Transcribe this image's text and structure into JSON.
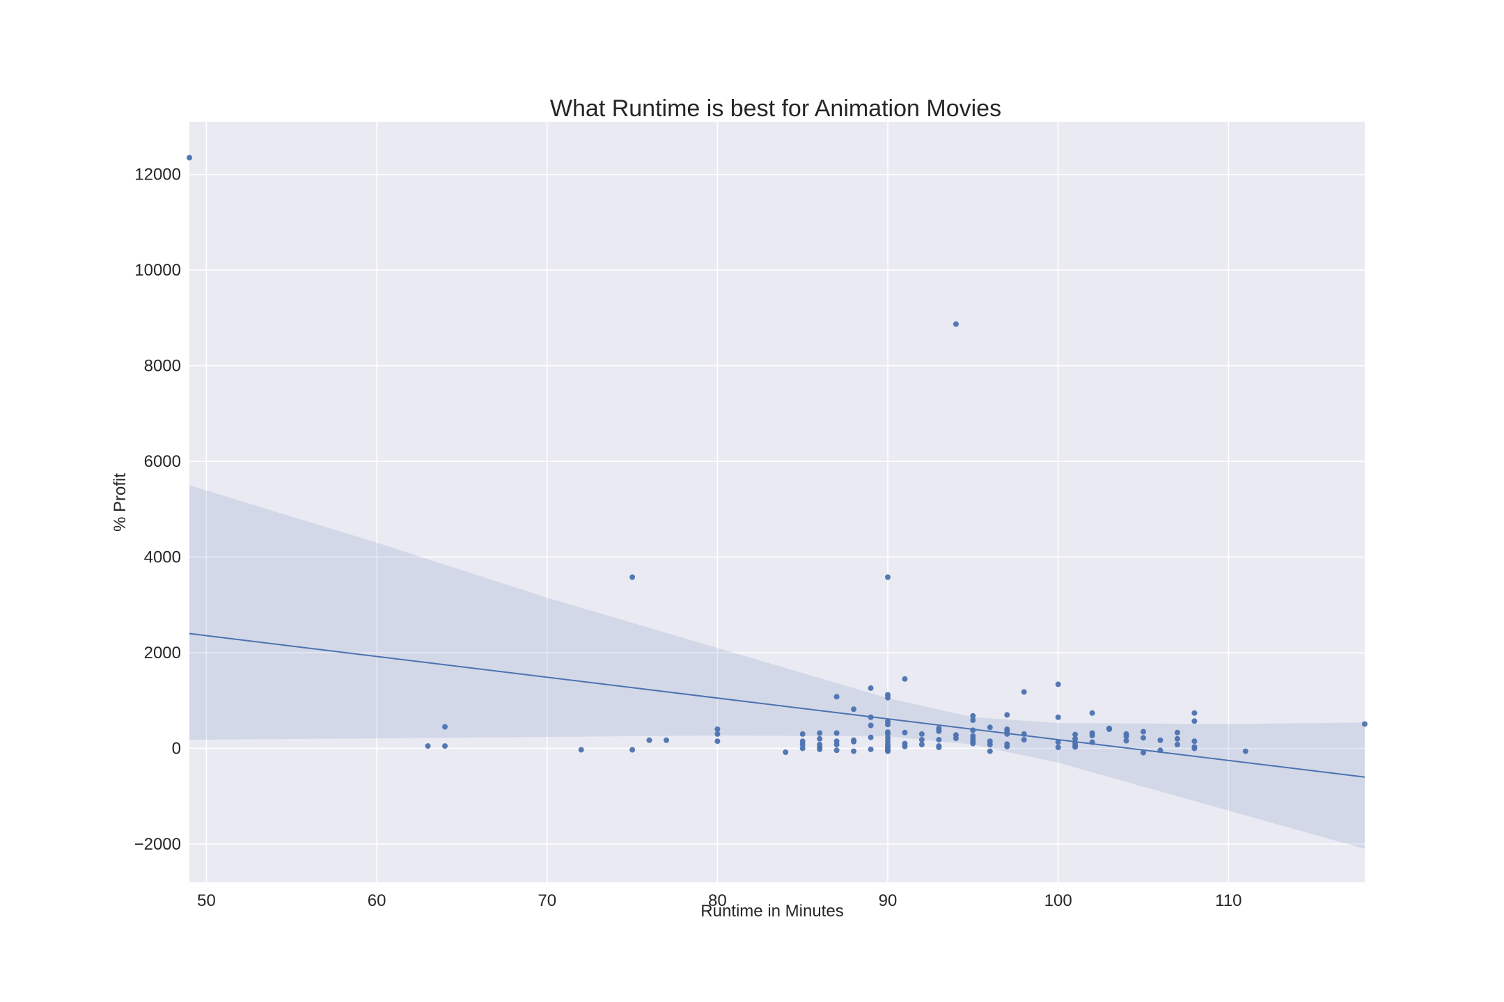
{
  "chart_data": {
    "type": "scatter",
    "title": "What Runtime is best for Animation Movies",
    "xlabel": "Runtime in Minutes",
    "ylabel": "% Profit",
    "xlim": [
      49,
      118
    ],
    "ylim": [
      -2800,
      13100
    ],
    "xticks": [
      50,
      60,
      70,
      80,
      90,
      100,
      110
    ],
    "yticks": [
      -2000,
      0,
      2000,
      4000,
      6000,
      8000,
      10000,
      12000
    ],
    "ytick_labels": [
      "−2000",
      "0",
      "2000",
      "4000",
      "6000",
      "8000",
      "10000",
      "12000"
    ],
    "grid": true,
    "background": "#eaeaf2",
    "point_color": "#4c72b0",
    "line_color": "#4c72b0",
    "band_color": "#4c72b0",
    "regression": {
      "x": [
        49,
        118
      ],
      "y": [
        2400,
        -600
      ],
      "ci_upper": [
        [
          49,
          5500
        ],
        [
          60,
          4300
        ],
        [
          70,
          3150
        ],
        [
          80,
          2100
        ],
        [
          90,
          1050
        ],
        [
          95,
          650
        ],
        [
          100,
          530
        ],
        [
          110,
          510
        ],
        [
          118,
          540
        ]
      ],
      "ci_lower": [
        [
          49,
          180
        ],
        [
          60,
          210
        ],
        [
          70,
          240
        ],
        [
          80,
          270
        ],
        [
          90,
          250
        ],
        [
          95,
          80
        ],
        [
          100,
          -300
        ],
        [
          110,
          -1300
        ],
        [
          118,
          -2100
        ]
      ]
    },
    "points": [
      [
        49,
        12350
      ],
      [
        63,
        50
      ],
      [
        64,
        450
      ],
      [
        64,
        50
      ],
      [
        72,
        -30
      ],
      [
        75,
        3580
      ],
      [
        75,
        -30
      ],
      [
        76,
        170
      ],
      [
        77,
        170
      ],
      [
        80,
        400
      ],
      [
        80,
        300
      ],
      [
        80,
        150
      ],
      [
        84,
        -80
      ],
      [
        85,
        300
      ],
      [
        85,
        150
      ],
      [
        85,
        80
      ],
      [
        85,
        0
      ],
      [
        86,
        320
      ],
      [
        86,
        200
      ],
      [
        86,
        80
      ],
      [
        86,
        20
      ],
      [
        86,
        -20
      ],
      [
        87,
        1080
      ],
      [
        87,
        320
      ],
      [
        87,
        150
      ],
      [
        87,
        80
      ],
      [
        87,
        -40
      ],
      [
        88,
        820
      ],
      [
        88,
        170
      ],
      [
        88,
        140
      ],
      [
        88,
        -60
      ],
      [
        89,
        1260
      ],
      [
        89,
        650
      ],
      [
        89,
        480
      ],
      [
        89,
        230
      ],
      [
        89,
        -20
      ],
      [
        90,
        3580
      ],
      [
        90,
        1120
      ],
      [
        90,
        1060
      ],
      [
        90,
        560
      ],
      [
        90,
        500
      ],
      [
        90,
        340
      ],
      [
        90,
        300
      ],
      [
        90,
        220
      ],
      [
        90,
        150
      ],
      [
        90,
        80
      ],
      [
        90,
        30
      ],
      [
        90,
        -10
      ],
      [
        90,
        -40
      ],
      [
        90,
        -60
      ],
      [
        91,
        1450
      ],
      [
        91,
        330
      ],
      [
        91,
        100
      ],
      [
        91,
        40
      ],
      [
        92,
        300
      ],
      [
        92,
        180
      ],
      [
        92,
        80
      ],
      [
        93,
        420
      ],
      [
        93,
        360
      ],
      [
        93,
        180
      ],
      [
        93,
        50
      ],
      [
        93,
        20
      ],
      [
        94,
        8870
      ],
      [
        94,
        280
      ],
      [
        94,
        210
      ],
      [
        95,
        680
      ],
      [
        95,
        590
      ],
      [
        95,
        380
      ],
      [
        95,
        260
      ],
      [
        95,
        200
      ],
      [
        95,
        150
      ],
      [
        95,
        100
      ],
      [
        96,
        440
      ],
      [
        96,
        150
      ],
      [
        96,
        80
      ],
      [
        96,
        -60
      ],
      [
        97,
        700
      ],
      [
        97,
        400
      ],
      [
        97,
        360
      ],
      [
        97,
        300
      ],
      [
        97,
        90
      ],
      [
        97,
        40
      ],
      [
        98,
        1180
      ],
      [
        98,
        300
      ],
      [
        98,
        180
      ],
      [
        100,
        1340
      ],
      [
        100,
        650
      ],
      [
        100,
        130
      ],
      [
        100,
        20
      ],
      [
        101,
        290
      ],
      [
        101,
        200
      ],
      [
        101,
        120
      ],
      [
        101,
        60
      ],
      [
        101,
        30
      ],
      [
        102,
        740
      ],
      [
        102,
        320
      ],
      [
        102,
        270
      ],
      [
        102,
        130
      ],
      [
        103,
        420
      ],
      [
        103,
        400
      ],
      [
        104,
        300
      ],
      [
        104,
        250
      ],
      [
        104,
        160
      ],
      [
        105,
        350
      ],
      [
        105,
        220
      ],
      [
        105,
        -90
      ],
      [
        106,
        170
      ],
      [
        106,
        -40
      ],
      [
        107,
        330
      ],
      [
        107,
        200
      ],
      [
        107,
        80
      ],
      [
        108,
        740
      ],
      [
        108,
        570
      ],
      [
        108,
        150
      ],
      [
        108,
        30
      ],
      [
        108,
        0
      ],
      [
        111,
        -60
      ],
      [
        118,
        510
      ]
    ]
  }
}
